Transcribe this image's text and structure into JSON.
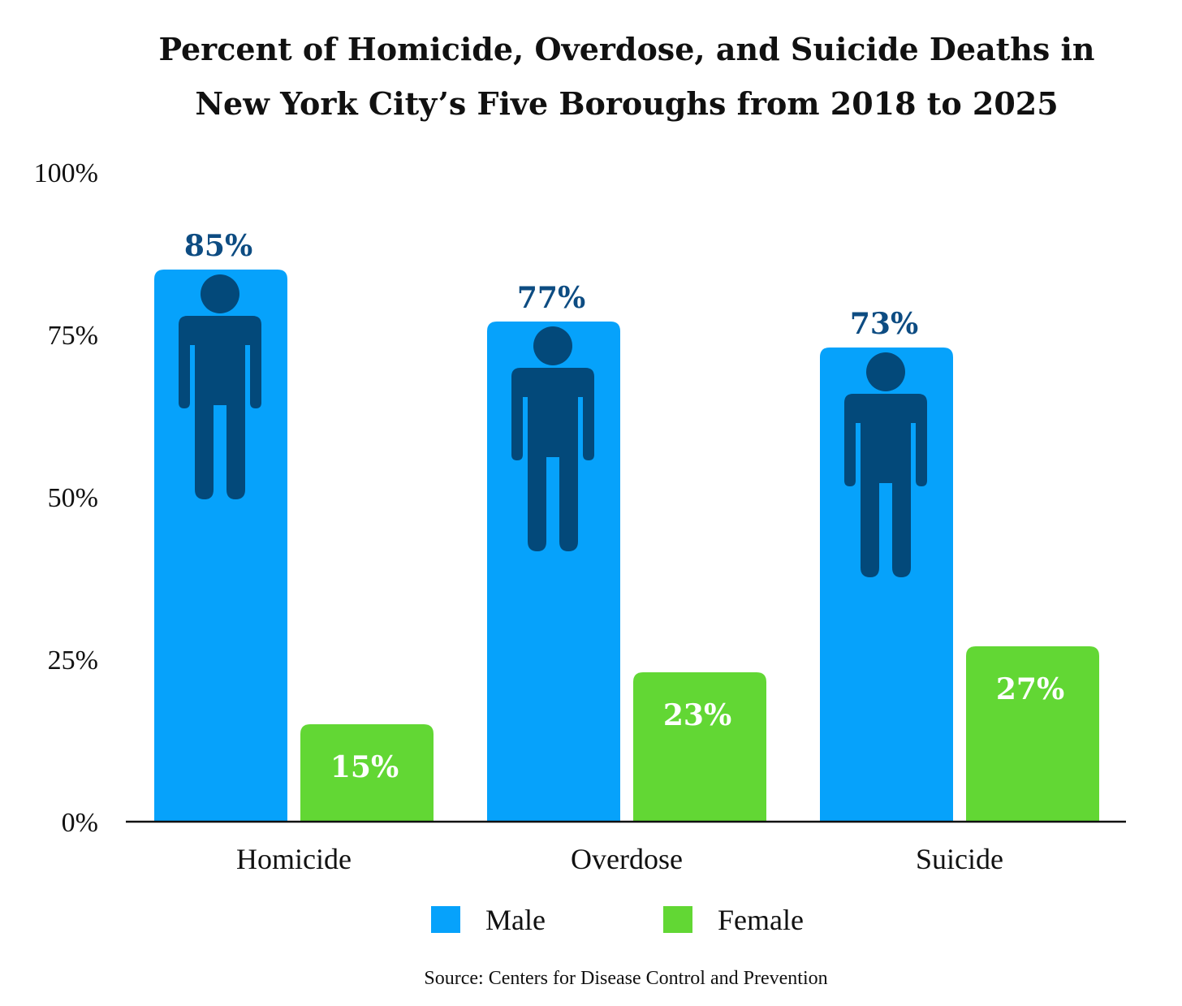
{
  "colors": {
    "male": "#06a2fb",
    "female": "#62d734",
    "figure": "#03497a",
    "male_label": "#0d4c82"
  },
  "icons": {
    "male_figure": "person-icon"
  },
  "chart_data": {
    "type": "bar",
    "title": "Percent of Homicide, Overdose, and Suicide Deaths in New York City’s Five Boroughs from 2018 to 2025",
    "title_lines": [
      "Percent of Homicide, Overdose, and Suicide Deaths in",
      "New York City’s Five Boroughs from 2018 to 2025"
    ],
    "categories": [
      "Homicide",
      "Overdose",
      "Suicide"
    ],
    "series": [
      {
        "name": "Male",
        "values": [
          85,
          77,
          73
        ],
        "labels": [
          "85%",
          "77%",
          "73%"
        ]
      },
      {
        "name": "Female",
        "values": [
          15,
          23,
          27
        ],
        "labels": [
          "15%",
          "23%",
          "27%"
        ]
      }
    ],
    "y_ticks": [
      0,
      25,
      50,
      75,
      100
    ],
    "y_tick_labels": [
      "0%",
      "25%",
      "50%",
      "75%",
      "100%"
    ],
    "ylim": [
      0,
      100
    ],
    "xlabel": "",
    "ylabel": "",
    "grid": false,
    "legend_position": "bottom-center",
    "source": "Source: Centers for Disease Control and Prevention"
  }
}
